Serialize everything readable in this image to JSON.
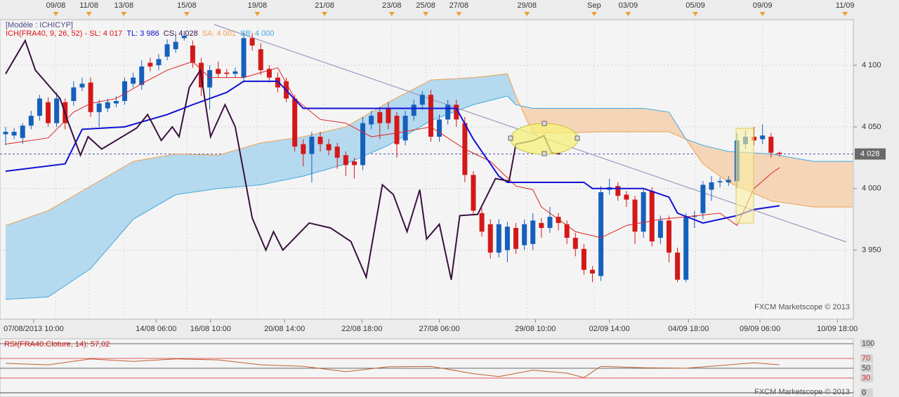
{
  "chart_data": [
    {
      "type": "candlestick",
      "model_label": "[Modèle : ICHICYP]",
      "legend": [
        {
          "text": "ICH(FRA40, 9, 26, 52) -  SL: 4 017",
          "color": "#dd1111"
        },
        {
          "text": "TL: 3 986",
          "color": "#1111cc"
        },
        {
          "text": "CS: 4 028",
          "color": "#3a1040"
        },
        {
          "text": "SA: 4 001",
          "color": "#f0a050"
        },
        {
          "text": "SB: 4 000",
          "color": "#40a8e0"
        }
      ],
      "up_color": "#1560bd",
      "down_color": "#d41818",
      "open": [
        4044,
        4043,
        4041,
        4051,
        4059,
        4070,
        4053,
        4070,
        4071,
        4082,
        4086,
        4062,
        4065,
        4069,
        4071,
        4085,
        4084,
        4102,
        4100,
        4107,
        4113,
        4122,
        4116,
        4102,
        4082,
        4097,
        4094,
        4093,
        4090,
        4122,
        4113,
        4097,
        4090,
        4087,
        4073,
        4036,
        4028,
        4042,
        4036,
        4034,
        4027,
        4022,
        4019,
        4052,
        4062,
        4065,
        4059,
        4039,
        4059,
        4068,
        4076,
        4042,
        4056,
        4068,
        4053,
        4011,
        3980,
        3971,
        3948,
        3950,
        3968,
        3954,
        3955,
        3972,
        3968,
        3977,
        3971,
        3960,
        3951,
        3934,
        3929,
        3999,
        4002,
        3995,
        3991,
        3965,
        3998,
        3960,
        3974,
        3948,
        3926,
        3977,
        3980,
        3999,
        4005,
        4005,
        4006,
        4036,
        4042,
        4040,
        4042,
        4029
      ],
      "high": [
        4050,
        4049,
        4053,
        4063,
        4076,
        4074,
        4078,
        4073,
        4087,
        4090,
        4090,
        4072,
        4073,
        4075,
        4090,
        4094,
        4104,
        4106,
        4109,
        4121,
        4126,
        4128,
        4120,
        4106,
        4100,
        4103,
        4097,
        4098,
        4127,
        4126,
        4118,
        4100,
        4094,
        4090,
        4076,
        4040,
        4046,
        4046,
        4040,
        4037,
        4030,
        4025,
        4058,
        4063,
        4066,
        4070,
        4062,
        4063,
        4072,
        4079,
        4080,
        4060,
        4072,
        4072,
        4058,
        4014,
        3984,
        3975,
        3975,
        3973,
        3972,
        3975,
        3980,
        3976,
        3985,
        3980,
        3974,
        3964,
        3955,
        3937,
        4002,
        4008,
        4005,
        3998,
        3994,
        4000,
        4001,
        3978,
        3978,
        3952,
        3980,
        3982,
        4006,
        4010,
        4009,
        4010,
        4045,
        4047,
        4050,
        4052,
        4045,
        4030
      ],
      "low": [
        4035,
        4040,
        4036,
        4048,
        4055,
        4050,
        4050,
        4048,
        4067,
        4079,
        4058,
        4050,
        4062,
        4066,
        4068,
        4082,
        4080,
        4095,
        4096,
        4104,
        4110,
        4120,
        4098,
        4075,
        4064,
        4090,
        4090,
        4090,
        4086,
        4112,
        4092,
        4086,
        4078,
        4070,
        4030,
        4018,
        4005,
        4030,
        4027,
        4016,
        4010,
        4008,
        4015,
        4048,
        4040,
        4048,
        4025,
        4035,
        4055,
        4064,
        4038,
        4038,
        4052,
        4050,
        4005,
        3978,
        3961,
        3943,
        3944,
        3940,
        3947,
        3950,
        3950,
        3960,
        3964,
        3966,
        3955,
        3945,
        3930,
        3924,
        3925,
        3995,
        3990,
        3985,
        3955,
        3960,
        3953,
        3955,
        3940,
        3924,
        3924,
        3968,
        3975,
        3990,
        4001,
        4002,
        4000,
        4032,
        4035,
        4036,
        4025,
        4026
      ],
      "close": [
        4046,
        4046,
        4051,
        4059,
        4073,
        4053,
        4073,
        4053,
        4082,
        4085,
        4062,
        4069,
        4070,
        4071,
        4087,
        4090,
        4099,
        4099,
        4105,
        4117,
        4119,
        4124,
        4102,
        4082,
        4096,
        4093,
        4093,
        4095,
        4122,
        4116,
        4096,
        4090,
        4082,
        4073,
        4034,
        4028,
        4042,
        4036,
        4031,
        4025,
        4019,
        4019,
        4053,
        4059,
        4053,
        4053,
        4036,
        4059,
        4068,
        4076,
        4042,
        4056,
        4068,
        4056,
        4011,
        3982,
        3965,
        3948,
        3971,
        3969,
        3951,
        3971,
        3974,
        3968,
        3977,
        3972,
        3960,
        3951,
        3934,
        3931,
        3997,
        4001,
        3994,
        3991,
        3965,
        3997,
        3957,
        3974,
        3948,
        3926,
        3977,
        3978,
        4003,
        4005,
        4006,
        4007,
        4039,
        4042,
        4039,
        4043,
        4029,
        4028
      ],
      "lines": [
        {
          "color": "#e02020",
          "width": 1,
          "x": [
            0,
            5,
            8,
            10,
            13,
            16,
            19,
            22,
            24,
            28,
            32,
            34,
            37,
            40,
            43,
            46,
            50,
            54,
            57,
            60,
            62,
            63,
            65,
            67,
            70,
            73,
            77,
            80,
            84,
            86,
            88,
            90,
            91
          ],
          "values": [
            4036,
            4041,
            4062,
            4069,
            4073,
            4085,
            4096,
            4103,
            4090,
            4090,
            4098,
            4073,
            4056,
            4053,
            4042,
            4045,
            4050,
            4032,
            4022,
            4002,
            3999,
            3985,
            3975,
            3965,
            3960,
            3970,
            3975,
            3977,
            3980,
            3970,
            4000,
            4012,
            4017
          ]
        },
        {
          "color": "#1010d8",
          "width": 2,
          "x": [
            0,
            7,
            9,
            14,
            19,
            22,
            26,
            28,
            32,
            35,
            36,
            53,
            55,
            58,
            59,
            68,
            69,
            75,
            78,
            79,
            82,
            86,
            88,
            90,
            91
          ],
          "values": [
            4014,
            4020,
            4048,
            4050,
            4060,
            4068,
            4078,
            4087,
            4087,
            4065,
            4065,
            4065,
            4040,
            4010,
            4005,
            4005,
            4000,
            4000,
            3993,
            3980,
            3972,
            3978,
            3983,
            3985,
            3986
          ]
        },
        {
          "color": "#3a1040",
          "width": 2,
          "x": [
            0,
            2.3,
            3.5,
            6.4,
            7.4,
            8.8,
            9.7,
            11.3,
            15.4,
            16.7,
            18.3,
            19.6,
            20.4,
            21.6,
            22.9,
            24.1,
            25.8,
            27,
            29,
            30.6,
            31.5,
            32.6,
            35.7,
            38.2,
            40.6,
            42.4,
            44.3,
            45.6,
            47.2,
            48.7,
            49.5,
            51,
            52.4,
            53.4,
            55.5,
            57.6,
            59.2,
            60,
            62.1,
            63.3,
            64.2,
            65.2
          ],
          "values": [
            4093,
            4120,
            4096,
            4073,
            4053,
            4027,
            4042,
            4032,
            4049,
            4060,
            4039,
            4050,
            4042,
            4082,
            4096,
            4042,
            4068,
            4050,
            3976,
            3950,
            3965,
            3950,
            3972,
            3968,
            3957,
            3928,
            4003,
            3995,
            3965,
            3999,
            3959,
            3971,
            3926,
            3978,
            3979,
            4008,
            4006,
            4036,
            4039,
            4043,
            4029,
            4028
          ]
        }
      ],
      "cloud": {
        "x": [
          0,
          5,
          10,
          15,
          20,
          25,
          30,
          35,
          40,
          45,
          50,
          55,
          59,
          60,
          62,
          65,
          70,
          75,
          78,
          80,
          82,
          85,
          90,
          95,
          99.6
        ],
        "span_a": [
          3970,
          3982,
          4002,
          4022,
          4028,
          4027,
          4037,
          4042,
          4050,
          4070,
          4088,
          4090,
          4093,
          4075,
          4045,
          4045,
          4046,
          4046,
          4046,
          4040,
          4020,
          4005,
          3990,
          3985,
          3985
        ],
        "span_b": [
          3910,
          3912,
          3935,
          3975,
          3995,
          4000,
          4003,
          4010,
          4020,
          4035,
          4055,
          4068,
          4075,
          4068,
          4065,
          4065,
          4065,
          4065,
          4062,
          4040,
          4035,
          4030,
          4028,
          4022,
          4022
        ],
        "span_a_color": "#f0a050",
        "span_b_color": "#40a8e0",
        "fill_a_above": "#b5d9ee",
        "fill_b_above": "#f5d5b8"
      },
      "last_price": 4028,
      "last_price_label": "4 028",
      "xlim": [
        -0.66,
        99.68
      ],
      "ylim": [
        3894,
        4137
      ],
      "yticks": [
        {
          "value": 4100,
          "label": "4 100"
        },
        {
          "value": 4050,
          "label": "4 050"
        },
        {
          "value": 4000,
          "label": "4 000"
        },
        {
          "value": 3950,
          "label": "3 950"
        }
      ],
      "xticks_top": [
        {
          "value": 5.9,
          "label": "09/08"
        },
        {
          "value": 9.8,
          "label": "11/08"
        },
        {
          "value": 13.9,
          "label": "13/08"
        },
        {
          "value": 21.3,
          "label": "15/08"
        },
        {
          "value": 29.6,
          "label": "19/08"
        },
        {
          "value": 37.5,
          "label": "21/08"
        },
        {
          "value": 45.4,
          "label": "23/08"
        },
        {
          "value": 49.4,
          "label": "25/08"
        },
        {
          "value": 53.3,
          "label": "27/08"
        },
        {
          "value": 61.3,
          "label": "29/08"
        },
        {
          "value": 69.2,
          "label": "Sep"
        },
        {
          "value": 73.2,
          "label": "03/09"
        },
        {
          "value": 81.1,
          "label": "05/09"
        },
        {
          "value": 89.0,
          "label": "09/09"
        },
        {
          "value": 98.7,
          "label": "11/09"
        }
      ],
      "xticks_bottom": [
        {
          "value": 3.3,
          "label": "07/08/2013 10:00"
        },
        {
          "value": 17.7,
          "label": "14/08 06:00"
        },
        {
          "value": 24.1,
          "label": "16/08 10:00"
        },
        {
          "value": 32.8,
          "label": "20/08 14:00"
        },
        {
          "value": 41.9,
          "label": "22/08 18:00"
        },
        {
          "value": 51.0,
          "label": "27/08 06:00"
        },
        {
          "value": 62.3,
          "label": "29/08 10:00"
        },
        {
          "value": 71.0,
          "label": "02/09 14:00"
        },
        {
          "value": 80.3,
          "label": "04/09 18:00"
        },
        {
          "value": 88.7,
          "label": "09/09 06:00"
        },
        {
          "value": 97.8,
          "label": "10/09 18:00"
        }
      ],
      "watermark": "FXCM Marketscope © 2013"
    },
    {
      "type": "line",
      "title": "RSI(FRA40.Cloture, 14): 57,02",
      "color": "#c06030",
      "x": [
        0,
        5,
        10,
        15,
        20,
        25,
        30,
        35,
        40,
        45,
        50,
        55,
        58,
        62,
        66,
        68,
        70,
        75,
        80,
        85,
        88,
        91
      ],
      "values": [
        60,
        57,
        69,
        64,
        69,
        67,
        57,
        54,
        43,
        53,
        54,
        39,
        33,
        46,
        40,
        31,
        54,
        51,
        50,
        57,
        61,
        57
      ],
      "xlim": [
        -0.66,
        99.68
      ],
      "ylim": [
        0,
        100
      ],
      "yticks": [
        100,
        70,
        50,
        30,
        0
      ],
      "ytick_colors": [
        "#444444",
        "#e03030",
        "#444444",
        "#e03030",
        "#222222"
      ],
      "watermark": "FXCM Marketscope © 2013"
    }
  ]
}
